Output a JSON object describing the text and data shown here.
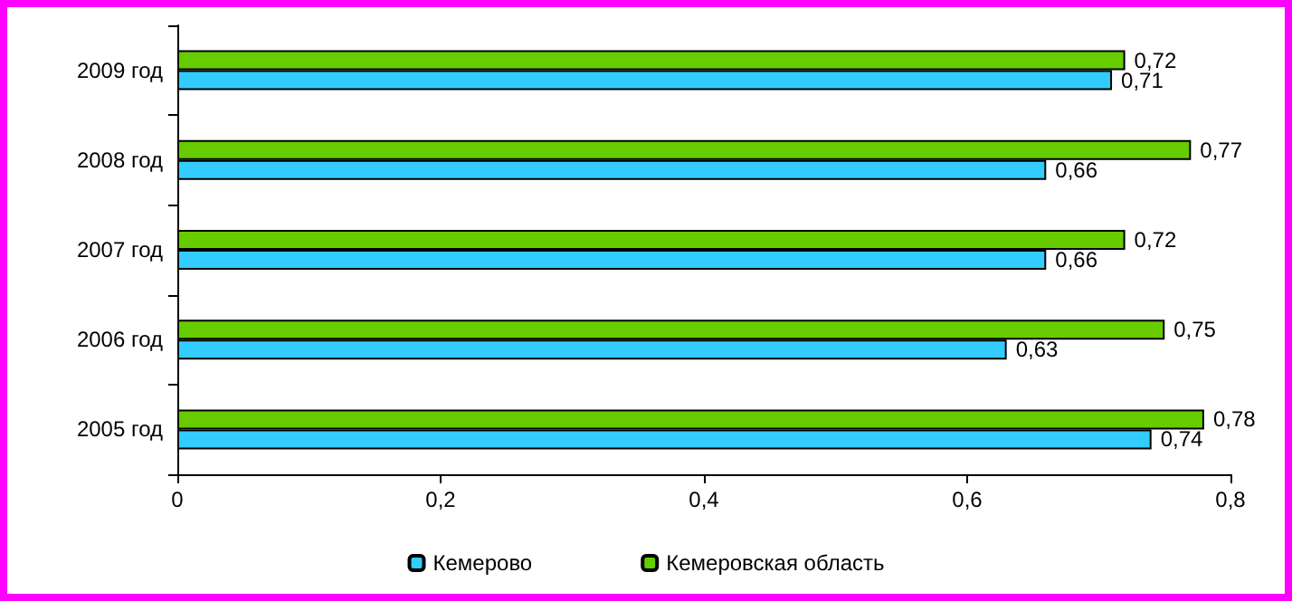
{
  "chart_data": {
    "type": "bar",
    "orientation": "horizontal",
    "categories": [
      "2009 год",
      "2008 год",
      "2007 год",
      "2006 год",
      "2005 год"
    ],
    "series": [
      {
        "name": "Кемерово",
        "color": "#33ccff",
        "values": [
          0.71,
          0.66,
          0.66,
          0.63,
          0.74
        ],
        "value_labels": [
          "0,71",
          "0,66",
          "0,66",
          "0,63",
          "0,74"
        ]
      },
      {
        "name": "Кемеровская область",
        "color": "#66cc00",
        "values": [
          0.72,
          0.77,
          0.72,
          0.75,
          0.78
        ],
        "value_labels": [
          "0,72",
          "0,77",
          "0,72",
          "0,75",
          "0,78"
        ]
      }
    ],
    "xlim": [
      0,
      0.8
    ],
    "xticks": [
      0,
      {
        "value": 0.2,
        "label": "0,2"
      },
      {
        "value": 0.4,
        "label": "0,4"
      },
      {
        "value": 0.6,
        "label": "0,6"
      },
      {
        "value": 0.8,
        "label": "0,8"
      }
    ],
    "grid": false,
    "legend": "bottom"
  }
}
